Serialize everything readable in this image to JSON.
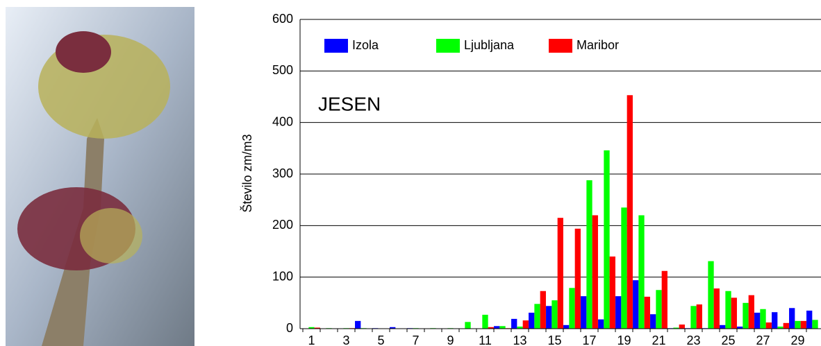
{
  "chart_data": {
    "type": "bar",
    "annotation": "JESEN",
    "y_label": "Število zm/m3",
    "categories": [
      "1",
      null,
      "3",
      null,
      "5",
      null,
      "7",
      null,
      "9",
      null,
      "11",
      null,
      "13",
      null,
      "15",
      null,
      "17",
      null,
      "19",
      null,
      "21",
      null,
      "23",
      null,
      "25",
      null,
      "27",
      null,
      "29",
      null
    ],
    "series": [
      {
        "name": "Izola",
        "color": "#0000ff",
        "values": [
          0,
          0,
          0,
          15,
          1,
          3,
          1,
          0,
          0,
          0,
          0,
          5,
          19,
          31,
          44,
          7,
          63,
          18,
          63,
          94,
          28,
          1,
          1,
          1,
          7,
          4,
          31,
          32,
          40,
          35
        ]
      },
      {
        "name": "Ljubljana",
        "color": "#00ff00",
        "values": [
          3,
          1,
          1,
          1,
          0,
          0,
          1,
          1,
          1,
          13,
          27,
          5,
          4,
          48,
          55,
          79,
          288,
          346,
          235,
          220,
          75,
          2,
          44,
          131,
          73,
          50,
          38,
          4,
          15,
          17
        ]
      },
      {
        "name": "Maribor",
        "color": "#ff0000",
        "values": [
          2,
          0,
          1,
          0,
          0,
          0,
          0,
          0,
          0,
          0,
          3,
          1,
          16,
          73,
          215,
          194,
          220,
          140,
          453,
          62,
          112,
          8,
          47,
          78,
          60,
          65,
          12,
          11,
          15,
          0
        ]
      }
    ],
    "ylim": [
      0,
      600
    ],
    "yticks": [
      0,
      100,
      200,
      300,
      400,
      500,
      600
    ],
    "grid": true,
    "legend": "top"
  }
}
